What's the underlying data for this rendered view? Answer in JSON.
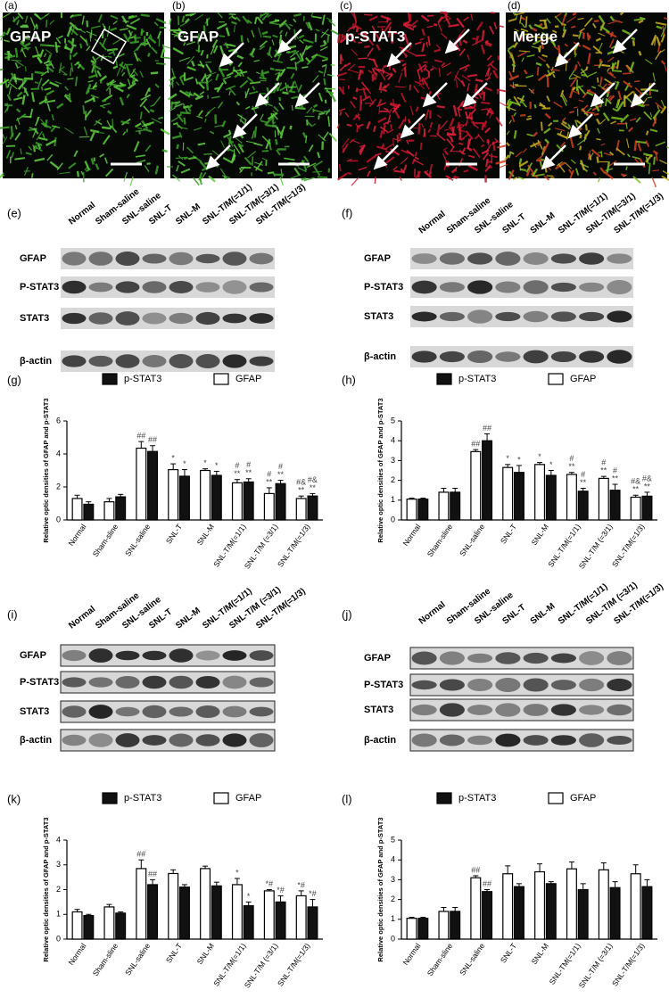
{
  "microscopy": [
    {
      "label": "(a)",
      "stain": "GFAP"
    },
    {
      "label": "(b)",
      "stain": "GFAP"
    },
    {
      "label": "(c)",
      "stain": "p-STAT3"
    },
    {
      "label": "(d)",
      "stain": "Merge"
    }
  ],
  "blots": [
    {
      "label": "(e)",
      "lanes": [
        "Normal",
        "Sham-saline",
        "SNL-saline",
        "SNL-T",
        "SNL-M",
        "SNL-T/M(=1/1)",
        "SNL-T/M(=3/1)",
        "SNL-T/M(=1/3)"
      ],
      "rows": [
        "GFAP",
        "P-STAT3",
        "STAT3",
        "β-actin"
      ]
    },
    {
      "label": "(f)",
      "lanes": [
        "Normal",
        "Sham-saline",
        "SNL-saline",
        "SNL-T",
        "SNL-M",
        "SNL-T/M(=1/1)",
        "SNL-T/M(=3/1)",
        "SNL-T/M(=1/3)"
      ],
      "rows": [
        "GFAP",
        "P-STAT3",
        "STAT3",
        "β-actin"
      ]
    },
    {
      "label": "(i)",
      "lanes": [
        "Normal",
        "Sham-saline",
        "SNL-saline",
        "SNL-T",
        "SNL-M",
        "SNL-T/M(=1/1)",
        "SNL-T/M (=3/1)",
        "SNL-T/M(=1/3)"
      ],
      "rows": [
        "GFAP",
        "P-STAT3",
        "STAT3",
        "β-actin"
      ]
    },
    {
      "label": "(j)",
      "lanes": [
        "Normal",
        "Sham-saline",
        "SNL-saline",
        "SNL-T",
        "SNL-M",
        "SNL-T/M(=1/1)",
        "SNL-T/M (=3/1)",
        "SNL-T/M(=1/3)"
      ],
      "rows": [
        "GFAP",
        "P-STAT3",
        "STAT3",
        "β-actin"
      ]
    }
  ],
  "chart_data": [
    {
      "type": "bar",
      "label": "(g)",
      "ylabel": "Relative optic densities of GFAP and p-STAT3",
      "categories": [
        "Normal",
        "Sham-sline",
        "SNL-saline",
        "SNL-T",
        "SNL-M",
        "SNL-T/M(=1/1)",
        "SNL-T/M (=3/1)",
        "SNL-T/M(=1/3)"
      ],
      "series": [
        {
          "name": "p-STAT3",
          "color": "#111111",
          "values": [
            0.95,
            1.4,
            4.15,
            2.65,
            2.7,
            2.3,
            2.2,
            1.45
          ],
          "errors": [
            0.15,
            0.15,
            0.35,
            0.4,
            0.25,
            0.2,
            0.2,
            0.15
          ],
          "annotations": [
            null,
            null,
            [
              "##"
            ],
            [
              "*"
            ],
            [
              "*"
            ],
            [
              "#",
              "**"
            ],
            [
              "#",
              "**"
            ],
            [
              "#&",
              "**"
            ]
          ]
        },
        {
          "name": "GFAP",
          "color": "#ffffff",
          "values": [
            1.3,
            1.1,
            4.35,
            3.05,
            3.0,
            2.25,
            1.6,
            1.3
          ],
          "errors": [
            0.2,
            0.2,
            0.4,
            0.35,
            0.1,
            0.2,
            0.35,
            0.15
          ],
          "annotations": [
            null,
            null,
            [
              "##"
            ],
            [
              "*"
            ],
            [
              "*"
            ],
            [
              "#",
              "**"
            ],
            [
              "#",
              "**"
            ],
            [
              "#&",
              "**"
            ]
          ]
        }
      ],
      "ylim": [
        0,
        6
      ],
      "yticks": [
        0,
        2,
        4,
        6
      ]
    },
    {
      "type": "bar",
      "label": "(h)",
      "ylabel": "Relative optic densities of GFAP and p-STAT3",
      "categories": [
        "Normal",
        "Sham-sline",
        "SNL-saline",
        "SNL-T",
        "SNL-M",
        "SNL-T/M(=1/1)",
        "SNL-T/M (=3/1)",
        "SNL-T/M(=1/3)"
      ],
      "series": [
        {
          "name": "p-STAT3",
          "color": "#111111",
          "values": [
            1.05,
            1.4,
            4.0,
            2.4,
            2.25,
            1.45,
            1.5,
            1.2
          ],
          "errors": [
            0.05,
            0.2,
            0.35,
            0.35,
            0.25,
            0.15,
            0.3,
            0.2
          ],
          "annotations": [
            null,
            null,
            [
              "##"
            ],
            [
              "*"
            ],
            [
              "*"
            ],
            [
              "#",
              "**"
            ],
            [
              "#",
              "**"
            ],
            [
              "#&",
              "**"
            ]
          ]
        },
        {
          "name": "GFAP",
          "color": "#ffffff",
          "values": [
            1.05,
            1.4,
            3.45,
            2.65,
            2.8,
            2.3,
            2.1,
            1.15
          ],
          "errors": [
            0.05,
            0.2,
            0.1,
            0.15,
            0.1,
            0.1,
            0.1,
            0.1
          ],
          "annotations": [
            null,
            null,
            [
              "##"
            ],
            [
              "*"
            ],
            [
              "*"
            ],
            [
              "#",
              "**"
            ],
            [
              "#",
              "**"
            ],
            [
              "#&",
              "**"
            ]
          ]
        }
      ],
      "ylim": [
        0,
        5
      ],
      "yticks": [
        0,
        1,
        2,
        3,
        4,
        5
      ]
    },
    {
      "type": "bar",
      "label": "(k)",
      "ylabel": "Relative optic densities of GFAP and p-STAT3",
      "categories": [
        "Normal",
        "Sham-sline",
        "SNL-saline",
        "SNL-T",
        "SNL-M",
        "SNL-T/M(=1/1)",
        "SNL-T/M (=3/1)",
        "SNL-T/M(=1/3)"
      ],
      "series": [
        {
          "name": "p-STAT3",
          "color": "#111111",
          "values": [
            0.95,
            1.05,
            2.2,
            2.1,
            2.15,
            1.35,
            1.5,
            1.3
          ],
          "errors": [
            0.05,
            0.05,
            0.2,
            0.1,
            0.15,
            0.15,
            0.25,
            0.3
          ],
          "annotations": [
            null,
            null,
            [
              "##"
            ],
            null,
            null,
            [
              "*"
            ],
            [
              "*#"
            ],
            [
              "*#"
            ]
          ]
        },
        {
          "name": "GFAP",
          "color": "#ffffff",
          "values": [
            1.1,
            1.3,
            2.85,
            2.65,
            2.85,
            2.2,
            1.95,
            1.75
          ],
          "errors": [
            0.1,
            0.1,
            0.35,
            0.15,
            0.1,
            0.25,
            0.05,
            0.2
          ],
          "annotations": [
            null,
            null,
            [
              "##"
            ],
            null,
            null,
            [
              "*"
            ],
            [
              "*#"
            ],
            [
              "*#"
            ]
          ]
        }
      ],
      "ylim": [
        0,
        4
      ],
      "yticks": [
        0,
        1,
        2,
        3,
        4
      ]
    },
    {
      "type": "bar",
      "label": "(l)",
      "ylabel": "Relative optic densities of GFAP and p-STAT3",
      "categories": [
        "Normal",
        "Sham-sline",
        "SNL-saline",
        "SNL-T",
        "SNL-M",
        "SNL-TM(=1/1)",
        "SNL-T/M (=3/1)",
        "SNL-T/M(=1/3)"
      ],
      "series": [
        {
          "name": "p-STAT3",
          "color": "#111111",
          "values": [
            1.05,
            1.4,
            2.4,
            2.65,
            2.8,
            2.5,
            2.6,
            2.65
          ],
          "errors": [
            0.05,
            0.2,
            0.1,
            0.15,
            0.1,
            0.3,
            0.3,
            0.35
          ],
          "annotations": [
            null,
            null,
            [
              "##"
            ],
            null,
            null,
            null,
            null,
            null
          ]
        },
        {
          "name": "GFAP",
          "color": "#ffffff",
          "values": [
            1.05,
            1.4,
            3.1,
            3.3,
            3.4,
            3.55,
            3.5,
            3.3
          ],
          "errors": [
            0.05,
            0.2,
            0.1,
            0.4,
            0.4,
            0.35,
            0.35,
            0.45
          ],
          "annotations": [
            null,
            null,
            [
              "##"
            ],
            null,
            null,
            null,
            null,
            null
          ]
        }
      ],
      "ylim": [
        0,
        5
      ],
      "yticks": [
        0,
        1,
        2,
        3,
        4,
        5
      ]
    }
  ]
}
